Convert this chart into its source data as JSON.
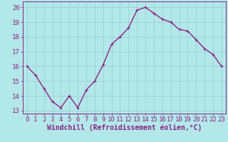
{
  "x": [
    0,
    1,
    2,
    3,
    4,
    5,
    6,
    7,
    8,
    9,
    10,
    11,
    12,
    13,
    14,
    15,
    16,
    17,
    18,
    19,
    20,
    21,
    22,
    23
  ],
  "y": [
    16.0,
    15.4,
    14.5,
    13.6,
    13.2,
    14.0,
    13.2,
    14.4,
    15.0,
    16.1,
    17.5,
    18.0,
    18.6,
    19.8,
    20.0,
    19.6,
    19.2,
    19.0,
    18.5,
    18.4,
    17.8,
    17.2,
    16.8,
    16.0
  ],
  "line_color": "#882288",
  "marker_color": "#882288",
  "bg_color": "#b3e8e8",
  "grid_color": "#99cccc",
  "xlabel": "Windchill (Refroidissement éolien,°C)",
  "xlim": [
    -0.5,
    23.5
  ],
  "ylim": [
    12.8,
    20.4
  ],
  "yticks": [
    13,
    14,
    15,
    16,
    17,
    18,
    19,
    20
  ],
  "xticks": [
    0,
    1,
    2,
    3,
    4,
    5,
    6,
    7,
    8,
    9,
    10,
    11,
    12,
    13,
    14,
    15,
    16,
    17,
    18,
    19,
    20,
    21,
    22,
    23
  ],
  "font_color": "#882288",
  "font_size": 6.5,
  "linewidth": 1.0,
  "markersize": 2.5
}
